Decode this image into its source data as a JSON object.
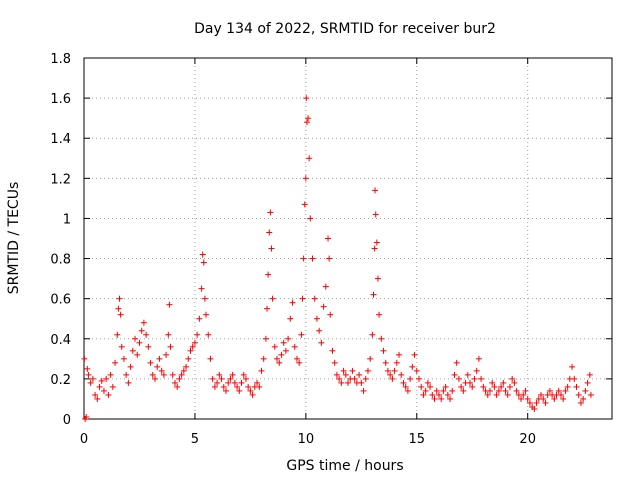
{
  "chart_data": {
    "type": "scatter",
    "title": "Day 134 of 2022, SRMTID for receiver bur2",
    "xlabel": "GPS time / hours",
    "ylabel": "SRMTID / TECUs",
    "xlim": [
      0,
      23.8
    ],
    "ylim": [
      0,
      1.8
    ],
    "xticks": [
      0,
      5,
      10,
      15,
      20
    ],
    "yticks": [
      0,
      0.2,
      0.4,
      0.6,
      0.8,
      1,
      1.2,
      1.4,
      1.6,
      1.8
    ],
    "xtick_labels": [
      "0",
      "5",
      "10",
      "15",
      "20"
    ],
    "ytick_labels": [
      "0",
      "0.2",
      "0.4",
      "0.6",
      "0.8",
      "1",
      "1.2",
      "1.4",
      "1.6",
      "1.8"
    ],
    "grid": true,
    "marker": "+",
    "color": "#ff0000",
    "series": [
      {
        "name": "bur2",
        "points": [
          [
            0.02,
            0.3
          ],
          [
            0.05,
            0.0
          ],
          [
            0.1,
            0.01
          ],
          [
            0.15,
            0.25
          ],
          [
            0.2,
            0.22
          ],
          [
            0.3,
            0.18
          ],
          [
            0.4,
            0.2
          ],
          [
            0.5,
            0.12
          ],
          [
            0.6,
            0.1
          ],
          [
            0.7,
            0.16
          ],
          [
            0.8,
            0.19
          ],
          [
            0.9,
            0.14
          ],
          [
            1.0,
            0.2
          ],
          [
            1.1,
            0.12
          ],
          [
            1.2,
            0.22
          ],
          [
            1.3,
            0.16
          ],
          [
            1.4,
            0.28
          ],
          [
            1.5,
            0.42
          ],
          [
            1.55,
            0.55
          ],
          [
            1.6,
            0.6
          ],
          [
            1.65,
            0.52
          ],
          [
            1.7,
            0.36
          ],
          [
            1.8,
            0.3
          ],
          [
            1.9,
            0.22
          ],
          [
            2.0,
            0.18
          ],
          [
            2.1,
            0.26
          ],
          [
            2.2,
            0.34
          ],
          [
            2.3,
            0.4
          ],
          [
            2.4,
            0.32
          ],
          [
            2.5,
            0.38
          ],
          [
            2.6,
            0.44
          ],
          [
            2.7,
            0.48
          ],
          [
            2.8,
            0.42
          ],
          [
            2.9,
            0.36
          ],
          [
            3.0,
            0.28
          ],
          [
            3.1,
            0.22
          ],
          [
            3.2,
            0.2
          ],
          [
            3.3,
            0.26
          ],
          [
            3.4,
            0.3
          ],
          [
            3.5,
            0.24
          ],
          [
            3.6,
            0.22
          ],
          [
            3.7,
            0.32
          ],
          [
            3.8,
            0.42
          ],
          [
            3.85,
            0.57
          ],
          [
            3.9,
            0.36
          ],
          [
            4.0,
            0.22
          ],
          [
            4.1,
            0.18
          ],
          [
            4.2,
            0.16
          ],
          [
            4.3,
            0.2
          ],
          [
            4.4,
            0.22
          ],
          [
            4.5,
            0.24
          ],
          [
            4.6,
            0.26
          ],
          [
            4.7,
            0.3
          ],
          [
            4.8,
            0.34
          ],
          [
            4.9,
            0.36
          ],
          [
            5.0,
            0.38
          ],
          [
            5.1,
            0.42
          ],
          [
            5.2,
            0.5
          ],
          [
            5.3,
            0.65
          ],
          [
            5.35,
            0.82
          ],
          [
            5.4,
            0.78
          ],
          [
            5.45,
            0.6
          ],
          [
            5.5,
            0.52
          ],
          [
            5.6,
            0.42
          ],
          [
            5.7,
            0.3
          ],
          [
            5.8,
            0.2
          ],
          [
            5.9,
            0.16
          ],
          [
            6.0,
            0.18
          ],
          [
            6.1,
            0.22
          ],
          [
            6.2,
            0.2
          ],
          [
            6.3,
            0.16
          ],
          [
            6.4,
            0.14
          ],
          [
            6.5,
            0.18
          ],
          [
            6.6,
            0.2
          ],
          [
            6.7,
            0.22
          ],
          [
            6.8,
            0.18
          ],
          [
            6.9,
            0.16
          ],
          [
            7.0,
            0.14
          ],
          [
            7.1,
            0.18
          ],
          [
            7.2,
            0.22
          ],
          [
            7.3,
            0.2
          ],
          [
            7.4,
            0.16
          ],
          [
            7.5,
            0.14
          ],
          [
            7.6,
            0.12
          ],
          [
            7.7,
            0.16
          ],
          [
            7.8,
            0.18
          ],
          [
            7.9,
            0.16
          ],
          [
            8.0,
            0.24
          ],
          [
            8.1,
            0.3
          ],
          [
            8.2,
            0.4
          ],
          [
            8.25,
            0.55
          ],
          [
            8.3,
            0.72
          ],
          [
            8.35,
            0.93
          ],
          [
            8.4,
            1.03
          ],
          [
            8.45,
            0.85
          ],
          [
            8.5,
            0.6
          ],
          [
            8.6,
            0.36
          ],
          [
            8.7,
            0.3
          ],
          [
            8.8,
            0.28
          ],
          [
            8.9,
            0.32
          ],
          [
            9.0,
            0.38
          ],
          [
            9.1,
            0.34
          ],
          [
            9.2,
            0.4
          ],
          [
            9.3,
            0.5
          ],
          [
            9.4,
            0.58
          ],
          [
            9.5,
            0.36
          ],
          [
            9.6,
            0.3
          ],
          [
            9.7,
            0.28
          ],
          [
            9.8,
            0.42
          ],
          [
            9.85,
            0.6
          ],
          [
            9.9,
            0.8
          ],
          [
            9.95,
            1.07
          ],
          [
            10.0,
            1.2
          ],
          [
            10.02,
            1.6
          ],
          [
            10.05,
            1.48
          ],
          [
            10.1,
            1.5
          ],
          [
            10.15,
            1.3
          ],
          [
            10.2,
            1.0
          ],
          [
            10.3,
            0.8
          ],
          [
            10.4,
            0.6
          ],
          [
            10.5,
            0.5
          ],
          [
            10.6,
            0.44
          ],
          [
            10.7,
            0.38
          ],
          [
            10.8,
            0.56
          ],
          [
            10.9,
            0.66
          ],
          [
            11.0,
            0.9
          ],
          [
            11.05,
            0.8
          ],
          [
            11.1,
            0.52
          ],
          [
            11.2,
            0.34
          ],
          [
            11.3,
            0.28
          ],
          [
            11.4,
            0.22
          ],
          [
            11.5,
            0.2
          ],
          [
            11.6,
            0.18
          ],
          [
            11.7,
            0.24
          ],
          [
            11.8,
            0.22
          ],
          [
            11.9,
            0.18
          ],
          [
            12.0,
            0.2
          ],
          [
            12.1,
            0.24
          ],
          [
            12.2,
            0.2
          ],
          [
            12.3,
            0.18
          ],
          [
            12.4,
            0.22
          ],
          [
            12.5,
            0.18
          ],
          [
            12.6,
            0.14
          ],
          [
            12.7,
            0.2
          ],
          [
            12.8,
            0.24
          ],
          [
            12.9,
            0.3
          ],
          [
            13.0,
            0.42
          ],
          [
            13.05,
            0.62
          ],
          [
            13.1,
            0.85
          ],
          [
            13.12,
            1.14
          ],
          [
            13.15,
            1.02
          ],
          [
            13.2,
            0.88
          ],
          [
            13.25,
            0.7
          ],
          [
            13.3,
            0.52
          ],
          [
            13.4,
            0.4
          ],
          [
            13.5,
            0.34
          ],
          [
            13.6,
            0.28
          ],
          [
            13.7,
            0.24
          ],
          [
            13.8,
            0.22
          ],
          [
            13.9,
            0.2
          ],
          [
            14.0,
            0.24
          ],
          [
            14.1,
            0.28
          ],
          [
            14.2,
            0.32
          ],
          [
            14.3,
            0.22
          ],
          [
            14.4,
            0.18
          ],
          [
            14.5,
            0.16
          ],
          [
            14.6,
            0.14
          ],
          [
            14.7,
            0.2
          ],
          [
            14.8,
            0.26
          ],
          [
            14.9,
            0.32
          ],
          [
            15.0,
            0.24
          ],
          [
            15.1,
            0.2
          ],
          [
            15.2,
            0.16
          ],
          [
            15.3,
            0.12
          ],
          [
            15.4,
            0.14
          ],
          [
            15.5,
            0.18
          ],
          [
            15.6,
            0.16
          ],
          [
            15.7,
            0.12
          ],
          [
            15.8,
            0.1
          ],
          [
            15.9,
            0.14
          ],
          [
            16.0,
            0.12
          ],
          [
            16.1,
            0.1
          ],
          [
            16.2,
            0.14
          ],
          [
            16.3,
            0.16
          ],
          [
            16.4,
            0.12
          ],
          [
            16.5,
            0.1
          ],
          [
            16.6,
            0.14
          ],
          [
            16.7,
            0.22
          ],
          [
            16.8,
            0.28
          ],
          [
            16.9,
            0.2
          ],
          [
            17.0,
            0.16
          ],
          [
            17.1,
            0.14
          ],
          [
            17.2,
            0.18
          ],
          [
            17.3,
            0.22
          ],
          [
            17.4,
            0.18
          ],
          [
            17.5,
            0.16
          ],
          [
            17.6,
            0.2
          ],
          [
            17.7,
            0.24
          ],
          [
            17.8,
            0.3
          ],
          [
            17.9,
            0.2
          ],
          [
            18.0,
            0.16
          ],
          [
            18.1,
            0.14
          ],
          [
            18.2,
            0.12
          ],
          [
            18.3,
            0.14
          ],
          [
            18.4,
            0.18
          ],
          [
            18.5,
            0.16
          ],
          [
            18.6,
            0.12
          ],
          [
            18.7,
            0.14
          ],
          [
            18.8,
            0.16
          ],
          [
            18.9,
            0.18
          ],
          [
            19.0,
            0.14
          ],
          [
            19.1,
            0.12
          ],
          [
            19.2,
            0.16
          ],
          [
            19.3,
            0.2
          ],
          [
            19.4,
            0.18
          ],
          [
            19.5,
            0.14
          ],
          [
            19.6,
            0.12
          ],
          [
            19.7,
            0.1
          ],
          [
            19.8,
            0.12
          ],
          [
            19.9,
            0.14
          ],
          [
            20.0,
            0.1
          ],
          [
            20.1,
            0.08
          ],
          [
            20.2,
            0.06
          ],
          [
            20.3,
            0.05
          ],
          [
            20.4,
            0.08
          ],
          [
            20.5,
            0.1
          ],
          [
            20.6,
            0.12
          ],
          [
            20.7,
            0.1
          ],
          [
            20.8,
            0.08
          ],
          [
            20.9,
            0.12
          ],
          [
            21.0,
            0.14
          ],
          [
            21.1,
            0.12
          ],
          [
            21.2,
            0.1
          ],
          [
            21.3,
            0.12
          ],
          [
            21.4,
            0.14
          ],
          [
            21.5,
            0.12
          ],
          [
            21.6,
            0.1
          ],
          [
            21.7,
            0.14
          ],
          [
            21.8,
            0.16
          ],
          [
            21.9,
            0.2
          ],
          [
            22.0,
            0.26
          ],
          [
            22.1,
            0.2
          ],
          [
            22.2,
            0.16
          ],
          [
            22.3,
            0.12
          ],
          [
            22.4,
            0.08
          ],
          [
            22.5,
            0.1
          ],
          [
            22.6,
            0.14
          ],
          [
            22.7,
            0.18
          ],
          [
            22.8,
            0.22
          ],
          [
            22.85,
            0.12
          ]
        ]
      }
    ]
  }
}
